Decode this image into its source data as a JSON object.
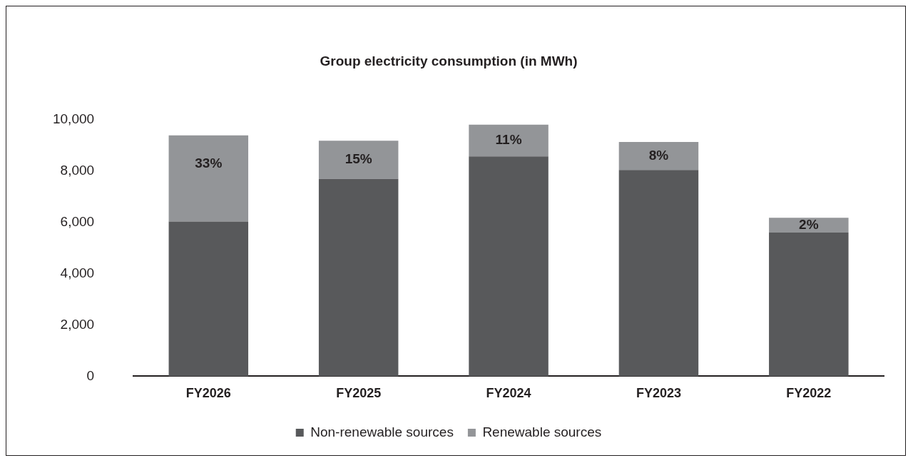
{
  "chart_data": {
    "type": "bar",
    "title": "Group electricity consumption (in MWh)",
    "categories": [
      "FY2026",
      "FY2025",
      "FY2024",
      "FY2023",
      "FY2022"
    ],
    "stacked": true,
    "series": [
      {
        "name": "Non-renewable sources",
        "color": "#58595b",
        "values": [
          6030,
          7690,
          8570,
          8040,
          5600
        ]
      },
      {
        "name": "Renewable sources",
        "color": "#939598",
        "values": [
          3360,
          1490,
          1240,
          1090,
          580
        ]
      }
    ],
    "annotations": [
      "33%",
      "15%",
      "11%",
      "8%",
      "2%"
    ],
    "ylim": [
      0,
      10000
    ],
    "yticks": [
      {
        "value": 0,
        "label": "0"
      },
      {
        "value": 2000,
        "label": "2,000"
      },
      {
        "value": 4000,
        "label": "4,000"
      },
      {
        "value": 6000,
        "label": "6,000"
      },
      {
        "value": 8000,
        "label": "8,000"
      },
      {
        "value": 10000,
        "label": "10,000"
      }
    ],
    "grid": false,
    "legend": "bottom"
  }
}
